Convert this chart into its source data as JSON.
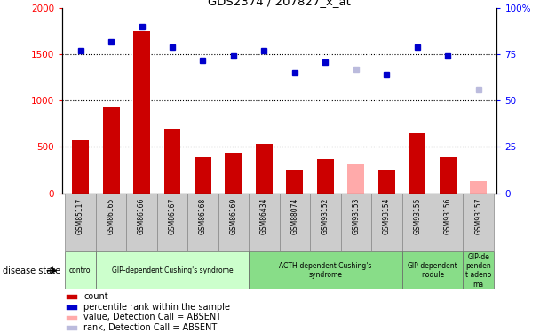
{
  "title": "GDS2374 / 207827_x_at",
  "samples": [
    "GSM85117",
    "GSM86165",
    "GSM86166",
    "GSM86167",
    "GSM86168",
    "GSM86169",
    "GSM86434",
    "GSM88074",
    "GSM93152",
    "GSM93153",
    "GSM93154",
    "GSM93155",
    "GSM93156",
    "GSM93157"
  ],
  "bar_values": [
    570,
    940,
    1750,
    700,
    390,
    440,
    530,
    255,
    370,
    null,
    250,
    650,
    390,
    null
  ],
  "bar_absent_values": [
    null,
    null,
    null,
    null,
    null,
    null,
    null,
    null,
    null,
    310,
    null,
    null,
    null,
    130
  ],
  "rank_values": [
    77,
    82,
    90,
    79,
    72,
    74,
    77,
    65,
    71,
    null,
    64,
    79,
    74,
    null
  ],
  "rank_absent_values": [
    null,
    null,
    null,
    null,
    null,
    null,
    null,
    null,
    null,
    67,
    null,
    null,
    null,
    56
  ],
  "bar_color": "#cc0000",
  "bar_absent_color": "#ffaaaa",
  "rank_color": "#0000cc",
  "rank_absent_color": "#bbbbdd",
  "ylim_left": [
    0,
    2000
  ],
  "ylim_right": [
    0,
    100
  ],
  "yticks_left": [
    0,
    500,
    1000,
    1500,
    2000
  ],
  "yticks_right": [
    0,
    25,
    50,
    75,
    100
  ],
  "hlines_pct": [
    25,
    50,
    75
  ],
  "disease_groups": [
    {
      "label": "control",
      "start": 0,
      "end": 1,
      "light": true
    },
    {
      "label": "GIP-dependent Cushing's syndrome",
      "start": 1,
      "end": 6,
      "light": true
    },
    {
      "label": "ACTH-dependent Cushing's\nsyndrome",
      "start": 6,
      "end": 11,
      "light": false
    },
    {
      "label": "GIP-dependent\nnodule",
      "start": 11,
      "end": 13,
      "light": false
    },
    {
      "label": "GIP-de\npenden\nt adeno\nma",
      "start": 13,
      "end": 14,
      "light": false
    }
  ],
  "legend_items": [
    {
      "label": "count",
      "color": "#cc0000"
    },
    {
      "label": "percentile rank within the sample",
      "color": "#0000cc"
    },
    {
      "label": "value, Detection Call = ABSENT",
      "color": "#ffaaaa"
    },
    {
      "label": "rank, Detection Call = ABSENT",
      "color": "#bbbbdd"
    }
  ],
  "light_group_color": "#ccffcc",
  "dark_group_color": "#88dd88",
  "sample_box_color": "#cccccc",
  "bar_width": 0.55
}
